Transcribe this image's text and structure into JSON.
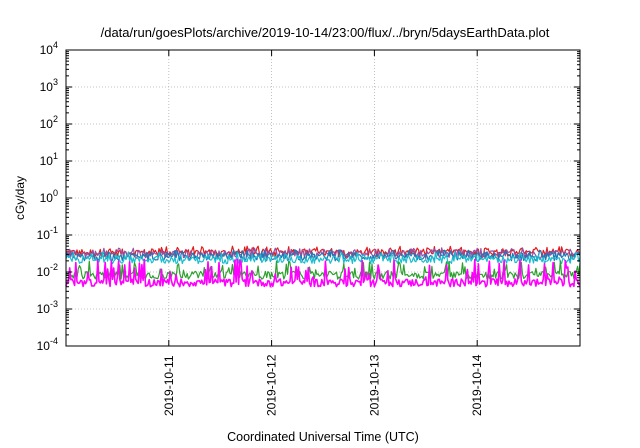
{
  "chart_data": {
    "type": "line",
    "title": "/data/run/goesPlots/archive/2019-10-14/23:00/flux/../bryn/5daysEarthData.plot",
    "xlabel": "Coordinated Universal Time (UTC)",
    "ylabel": "cGy/day",
    "y_scale": "log",
    "ylim": [
      0.0001,
      10000
    ],
    "xlim": [
      "2019-10-10T00:00",
      "2019-10-15T00:00"
    ],
    "y_ticks": [
      {
        "value": 0.0001,
        "base": "10",
        "exp": "-4"
      },
      {
        "value": 0.001,
        "base": "10",
        "exp": "-3"
      },
      {
        "value": 0.01,
        "base": "10",
        "exp": "-2"
      },
      {
        "value": 0.1,
        "base": "10",
        "exp": "-1"
      },
      {
        "value": 1,
        "base": "10",
        "exp": "0"
      },
      {
        "value": 10,
        "base": "10",
        "exp": "1"
      },
      {
        "value": 100,
        "base": "10",
        "exp": "2"
      },
      {
        "value": 1000,
        "base": "10",
        "exp": "3"
      },
      {
        "value": 10000,
        "base": "10",
        "exp": "4"
      }
    ],
    "x_ticks": [
      {
        "value": "2019-10-11",
        "label": "2019-10-11"
      },
      {
        "value": "2019-10-12",
        "label": "2019-10-12"
      },
      {
        "value": "2019-10-13",
        "label": "2019-10-13"
      },
      {
        "value": "2019-10-14",
        "label": "2019-10-14"
      }
    ],
    "grid": true,
    "series": [
      {
        "color": "#e41a1c",
        "baseline": 0.032,
        "peak": 0.05
      },
      {
        "color": "#984ea3",
        "baseline": 0.029,
        "peak": 0.045
      },
      {
        "color": "#1f77b4",
        "baseline": 0.025,
        "peak": 0.04
      },
      {
        "color": "#17becf",
        "baseline": 0.021,
        "peak": 0.035
      },
      {
        "color": "#2ca02c",
        "baseline": 0.008,
        "peak": 0.02
      },
      {
        "color": "#ff00ff",
        "baseline": 0.005,
        "peak": 0.022,
        "dropouts": [
          "2019-10-10T19:00",
          "2019-10-11T19:00"
        ]
      }
    ]
  }
}
